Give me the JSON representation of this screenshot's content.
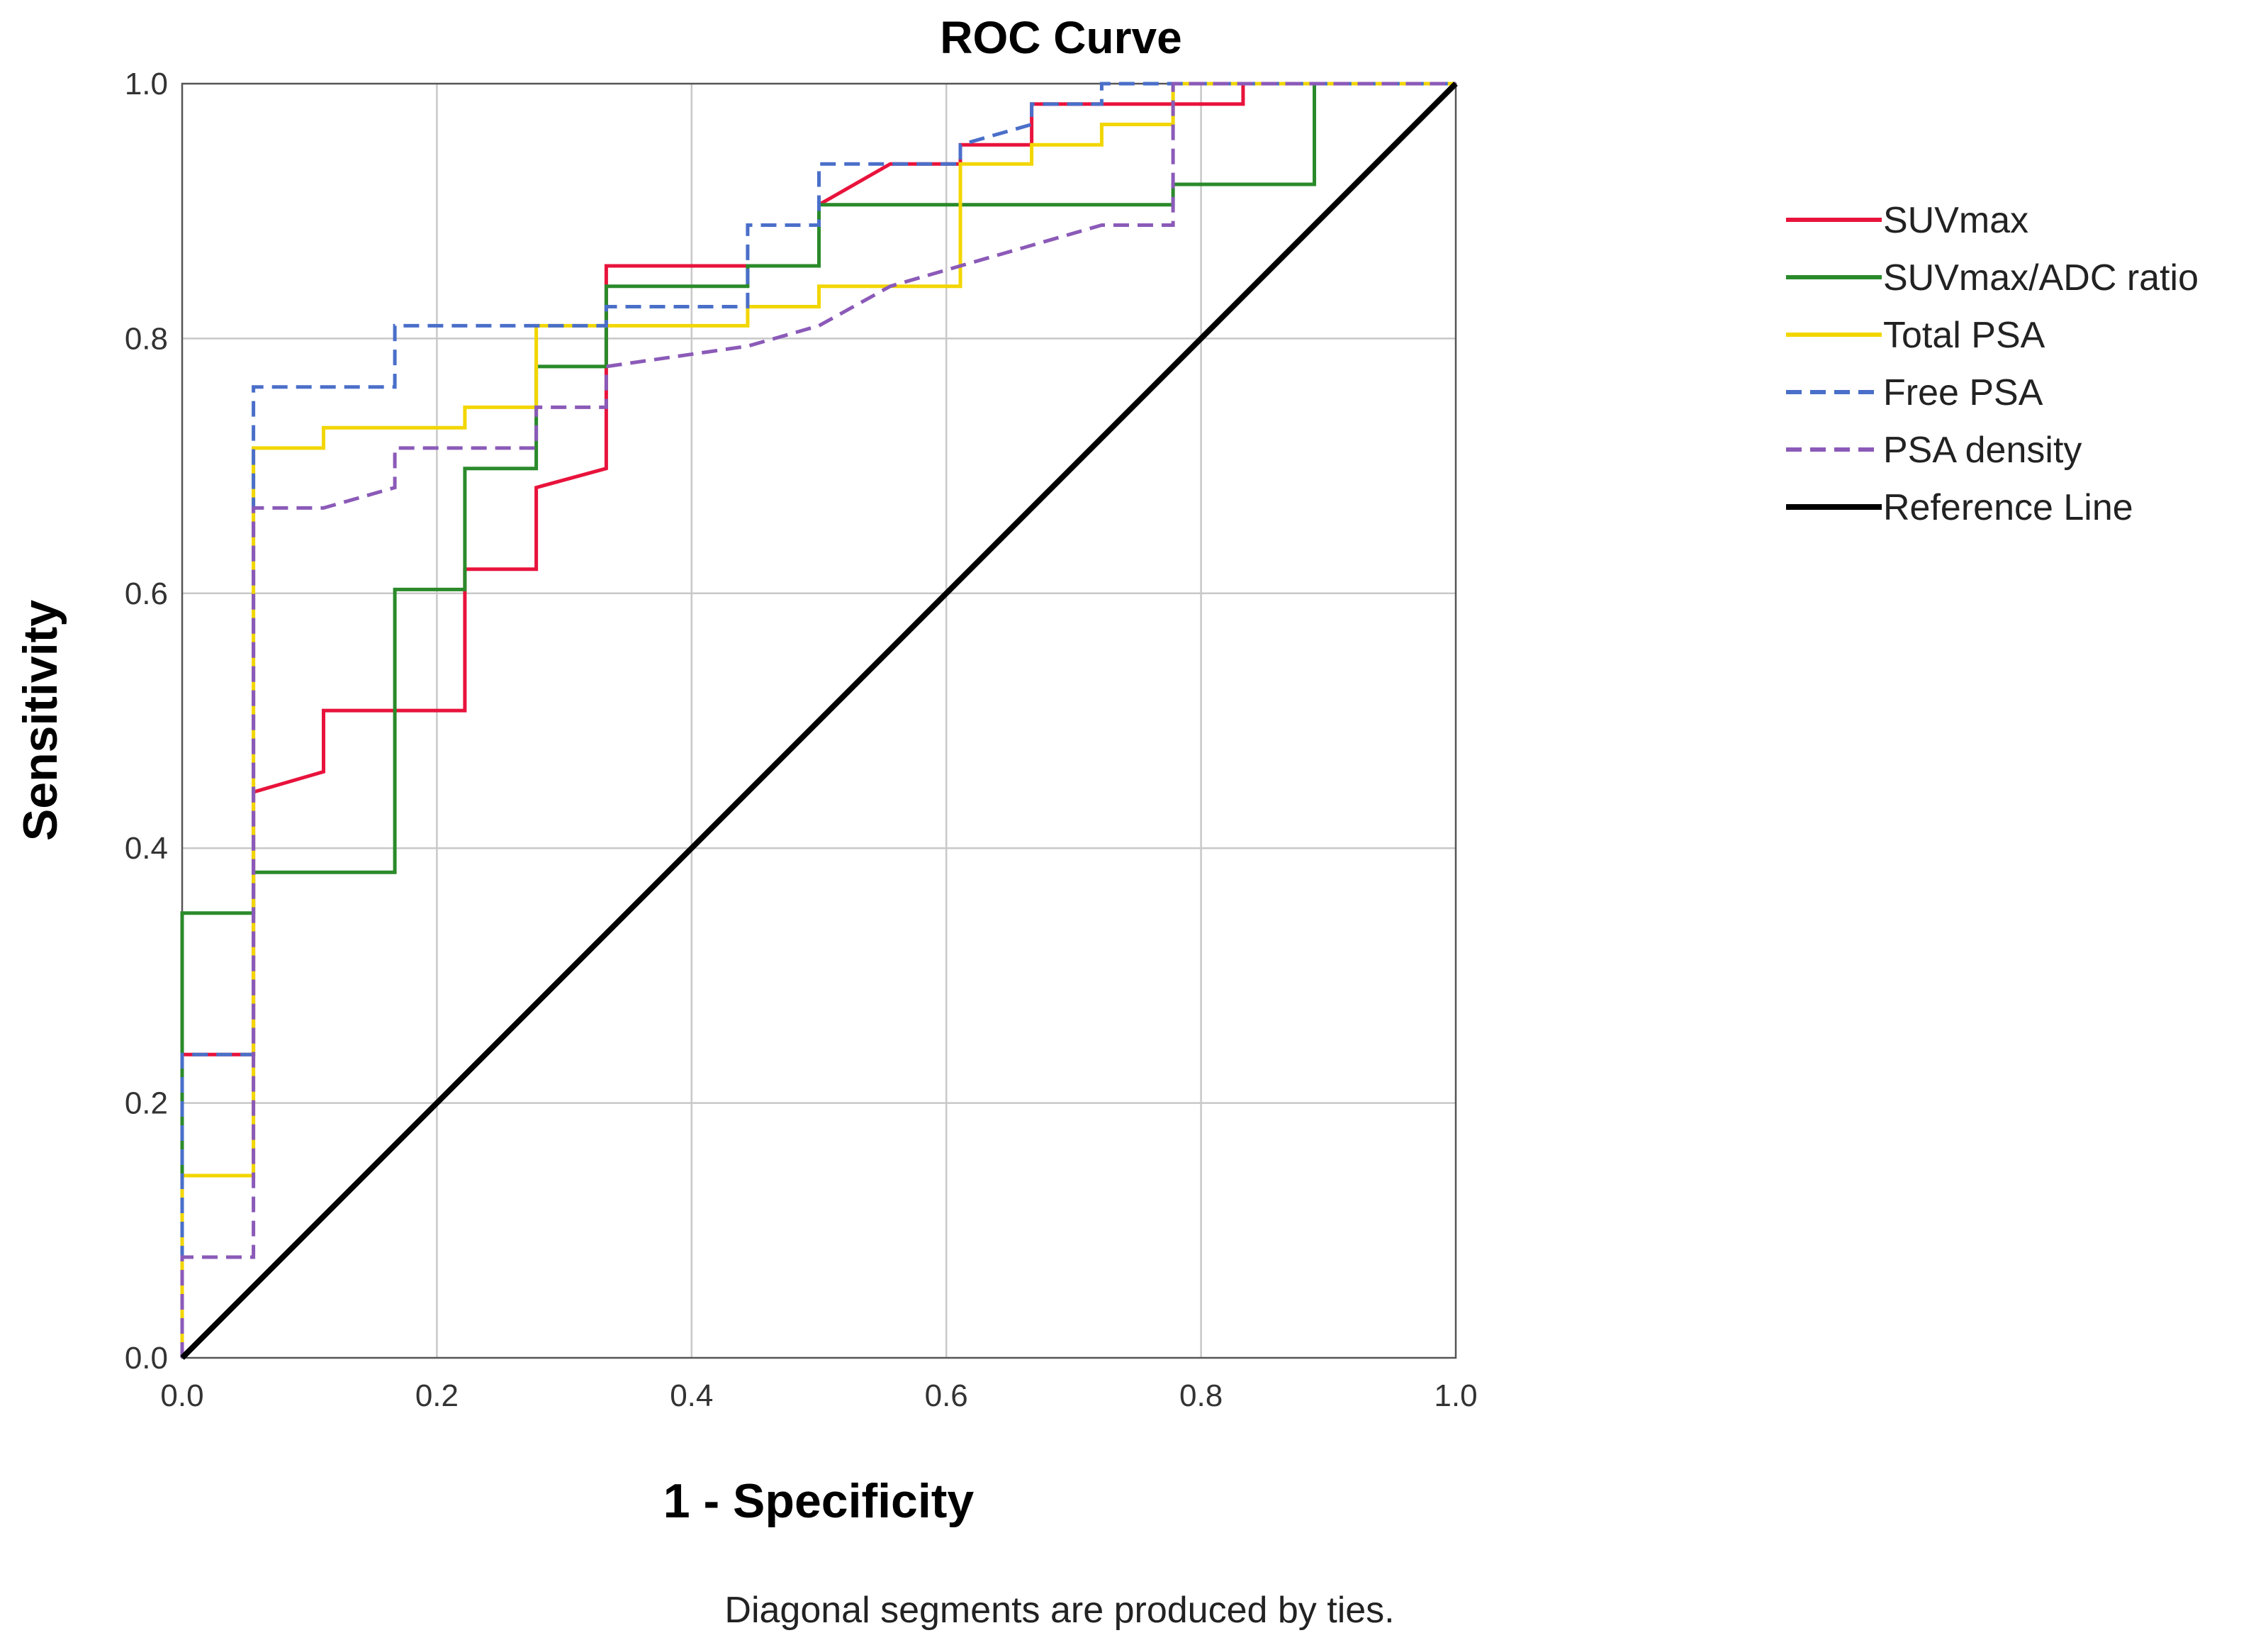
{
  "chart_data": {
    "type": "line",
    "title": "ROC Curve",
    "xlabel": "1 - Specificity",
    "ylabel": "Sensitivity",
    "xlim": [
      0,
      1
    ],
    "ylim": [
      0,
      1
    ],
    "xticks": [
      "0.0",
      "0.2",
      "0.4",
      "0.6",
      "0.8",
      "1.0"
    ],
    "yticks": [
      "0.0",
      "0.2",
      "0.4",
      "0.6",
      "0.8",
      "1.0"
    ],
    "grid": true,
    "legend_position": "right",
    "footnote": "Diagonal segments are produced by ties.",
    "series": [
      {
        "name": "SUVmax",
        "color": "#e8133c",
        "dashed": false,
        "points": [
          [
            0,
            0
          ],
          [
            0,
            0.238
          ],
          [
            0.056,
            0.238
          ],
          [
            0.056,
            0.444
          ],
          [
            0.111,
            0.46
          ],
          [
            0.111,
            0.508
          ],
          [
            0.222,
            0.508
          ],
          [
            0.222,
            0.619
          ],
          [
            0.278,
            0.619
          ],
          [
            0.278,
            0.683
          ],
          [
            0.333,
            0.698
          ],
          [
            0.333,
            0.857
          ],
          [
            0.444,
            0.857
          ],
          [
            0.444,
            0.857
          ],
          [
            0.5,
            0.857
          ],
          [
            0.5,
            0.905
          ],
          [
            0.556,
            0.937
          ],
          [
            0.611,
            0.937
          ],
          [
            0.611,
            0.952
          ],
          [
            0.667,
            0.952
          ],
          [
            0.667,
            0.984
          ],
          [
            0.833,
            0.984
          ],
          [
            0.833,
            1.0
          ],
          [
            1.0,
            1.0
          ]
        ]
      },
      {
        "name": "SUVmax/ADC ratio",
        "color": "#2a8a2a",
        "dashed": false,
        "points": [
          [
            0,
            0
          ],
          [
            0,
            0.349
          ],
          [
            0.056,
            0.349
          ],
          [
            0.056,
            0.381
          ],
          [
            0.167,
            0.381
          ],
          [
            0.167,
            0.603
          ],
          [
            0.222,
            0.603
          ],
          [
            0.222,
            0.698
          ],
          [
            0.278,
            0.698
          ],
          [
            0.278,
            0.778
          ],
          [
            0.333,
            0.778
          ],
          [
            0.333,
            0.841
          ],
          [
            0.444,
            0.841
          ],
          [
            0.444,
            0.857
          ],
          [
            0.5,
            0.857
          ],
          [
            0.5,
            0.905
          ],
          [
            0.778,
            0.905
          ],
          [
            0.778,
            0.921
          ],
          [
            0.889,
            0.921
          ],
          [
            0.889,
            1.0
          ],
          [
            1.0,
            1.0
          ]
        ]
      },
      {
        "name": "Total PSA",
        "color": "#f2d600",
        "dashed": false,
        "points": [
          [
            0,
            0
          ],
          [
            0,
            0.143
          ],
          [
            0.056,
            0.143
          ],
          [
            0.056,
            0.714
          ],
          [
            0.111,
            0.714
          ],
          [
            0.111,
            0.73
          ],
          [
            0.222,
            0.73
          ],
          [
            0.222,
            0.746
          ],
          [
            0.278,
            0.746
          ],
          [
            0.278,
            0.81
          ],
          [
            0.444,
            0.81
          ],
          [
            0.444,
            0.825
          ],
          [
            0.5,
            0.825
          ],
          [
            0.5,
            0.841
          ],
          [
            0.611,
            0.841
          ],
          [
            0.611,
            0.937
          ],
          [
            0.667,
            0.937
          ],
          [
            0.667,
            0.952
          ],
          [
            0.722,
            0.952
          ],
          [
            0.722,
            0.968
          ],
          [
            0.778,
            0.968
          ],
          [
            0.778,
            1.0
          ],
          [
            1.0,
            1.0
          ]
        ]
      },
      {
        "name": "Free PSA",
        "color": "#4a6fc9",
        "dashed": true,
        "points": [
          [
            0,
            0
          ],
          [
            0,
            0.238
          ],
          [
            0.056,
            0.238
          ],
          [
            0.056,
            0.762
          ],
          [
            0.167,
            0.762
          ],
          [
            0.167,
            0.81
          ],
          [
            0.333,
            0.81
          ],
          [
            0.333,
            0.825
          ],
          [
            0.444,
            0.825
          ],
          [
            0.444,
            0.889
          ],
          [
            0.5,
            0.889
          ],
          [
            0.5,
            0.937
          ],
          [
            0.611,
            0.937
          ],
          [
            0.611,
            0.952
          ],
          [
            0.667,
            0.968
          ],
          [
            0.667,
            0.984
          ],
          [
            0.722,
            0.984
          ],
          [
            0.722,
            1.0
          ],
          [
            1.0,
            1.0
          ]
        ]
      },
      {
        "name": "PSA density",
        "color": "#8b5ab8",
        "dashed": true,
        "points": [
          [
            0,
            0
          ],
          [
            0,
            0.079
          ],
          [
            0.056,
            0.079
          ],
          [
            0.056,
            0.667
          ],
          [
            0.111,
            0.667
          ],
          [
            0.167,
            0.683
          ],
          [
            0.167,
            0.714
          ],
          [
            0.278,
            0.714
          ],
          [
            0.278,
            0.746
          ],
          [
            0.333,
            0.746
          ],
          [
            0.333,
            0.778
          ],
          [
            0.444,
            0.794
          ],
          [
            0.5,
            0.81
          ],
          [
            0.556,
            0.841
          ],
          [
            0.611,
            0.857
          ],
          [
            0.722,
            0.889
          ],
          [
            0.778,
            0.889
          ],
          [
            0.778,
            1.0
          ],
          [
            1.0,
            1.0
          ]
        ]
      },
      {
        "name": "Reference Line",
        "color": "#000000",
        "dashed": false,
        "reference": true,
        "points": [
          [
            0,
            0
          ],
          [
            1,
            1
          ]
        ]
      }
    ]
  }
}
